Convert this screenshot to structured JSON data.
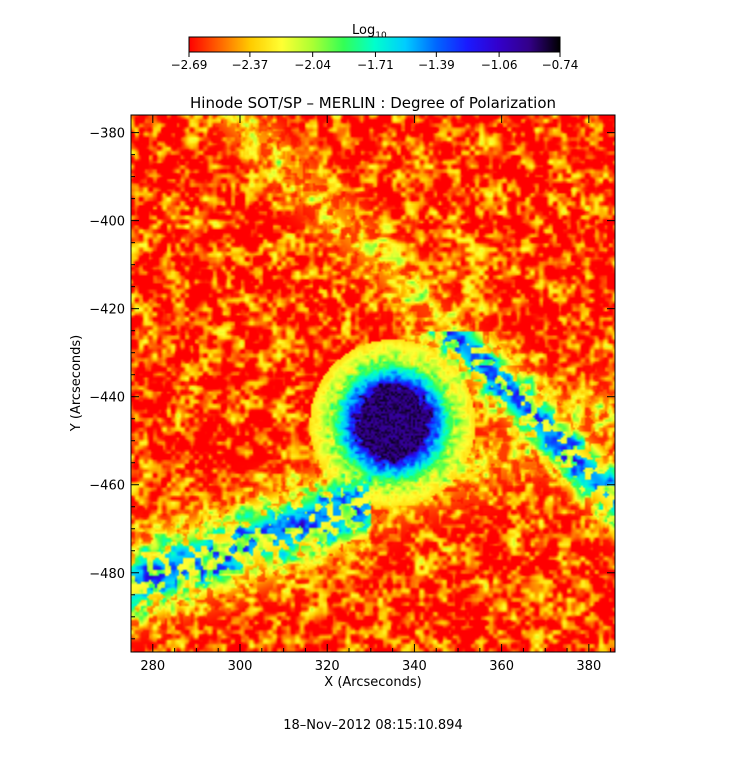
{
  "chart_data": {
    "type": "heatmap",
    "title": "Hinode SOT/SP – MERLIN : Degree of Polarization",
    "xlabel": "X (Arcseconds)",
    "ylabel": "Y (Arcseconds)",
    "xlim": [
      275,
      386
    ],
    "ylim": [
      -498,
      -376
    ],
    "x_ticks": [
      280,
      300,
      320,
      340,
      360,
      380
    ],
    "x_tick_labels": [
      "280",
      "300",
      "320",
      "340",
      "360",
      "380"
    ],
    "y_ticks": [
      -380,
      -400,
      -420,
      -440,
      -460,
      -480
    ],
    "y_tick_labels": [
      "−380",
      "−400",
      "−420",
      "−440",
      "−460",
      "−480"
    ],
    "colorbar": {
      "label_main": "Log",
      "label_sub": "10",
      "range": [
        -2.69,
        -0.74
      ],
      "ticks": [
        -2.69,
        -2.37,
        -2.04,
        -1.71,
        -1.39,
        -1.06,
        -0.74
      ],
      "tick_labels": [
        "−2.69",
        "−2.37",
        "−2.04",
        "−1.71",
        "−1.39",
        "−1.06",
        "−0.74"
      ],
      "colormap": [
        "#ff0000",
        "#ff6600",
        "#ffcc00",
        "#ffff33",
        "#aaff33",
        "#33ff55",
        "#00ffcc",
        "#00ccff",
        "#0066ff",
        "#1a1aff",
        "#3300cc",
        "#330088",
        "#000000"
      ]
    },
    "features": {
      "sunspot_center": [
        335,
        -446
      ],
      "umbra_radius": 8.5,
      "penumbra_radius": 14,
      "description_values": {
        "background_level": -2.69,
        "umbra_level": -0.74
      }
    }
  },
  "footer": {
    "timestamp": "18–Nov–2012 08:15:10.894"
  }
}
